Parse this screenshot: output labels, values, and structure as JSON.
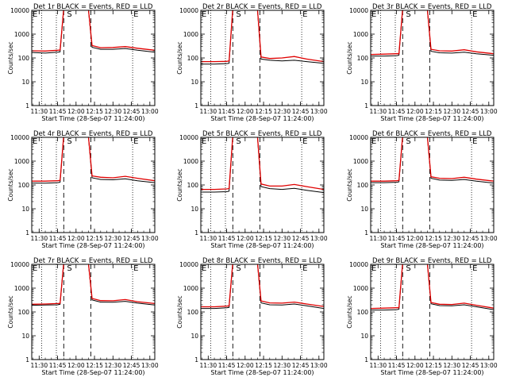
{
  "chart_data": [
    {
      "type": "line",
      "title": "Det 1r BLACK = Events, RED = LLD",
      "xlabel": "Start Time (28-Sep-07 11:24:00)",
      "ylabel": "Counts/sec",
      "x_ticks": [
        "11:30",
        "11:45",
        "12:00",
        "12:15",
        "12:30",
        "12:45",
        "13:00"
      ],
      "y_ticks": [
        "1",
        "10",
        "100",
        "1000",
        "10000"
      ],
      "y_scale": "log",
      "ylim": [
        1,
        10000
      ],
      "xlim": [
        "11:24",
        "13:04"
      ],
      "markers": [
        {
          "label": "E",
          "x": "11:24",
          "style": "dotted"
        },
        {
          "label": "S",
          "x": "11:52",
          "style": "dashed"
        },
        {
          "label": "E",
          "x": "12:46",
          "style": "dotted"
        }
      ],
      "dotted_lines": [
        "11:32",
        "11:44",
        "12:46"
      ],
      "dashed_lines": [
        "11:50",
        "12:12"
      ],
      "x": [
        "11:24",
        "11:35",
        "11:45",
        "11:47",
        "11:50",
        "11:52",
        "12:10",
        "12:13",
        "12:20",
        "12:30",
        "12:40",
        "12:50",
        "13:04"
      ],
      "series": [
        {
          "name": "Events",
          "color": "#000000",
          "values": [
            170,
            160,
            175,
            180,
            12000,
            12000,
            12000,
            280,
            230,
            230,
            250,
            210,
            175
          ]
        },
        {
          "name": "LLD",
          "color": "#e00000",
          "values": [
            200,
            195,
            210,
            215,
            12000,
            12000,
            12000,
            330,
            270,
            275,
            300,
            255,
            210
          ]
        }
      ]
    },
    {
      "type": "line",
      "title": "Det 2r BLACK = Events, RED = LLD",
      "xlabel": "Start Time (28-Sep-07 11:24:00)",
      "ylabel": "Counts/sec",
      "x_ticks": [
        "11:30",
        "11:45",
        "12:00",
        "12:15",
        "12:30",
        "12:45",
        "13:00"
      ],
      "y_ticks": [
        "1",
        "10",
        "100",
        "1000",
        "10000"
      ],
      "y_scale": "log",
      "ylim": [
        1,
        10000
      ],
      "xlim": [
        "11:24",
        "13:04"
      ],
      "markers": [
        {
          "label": "E",
          "x": "11:24",
          "style": "dotted"
        },
        {
          "label": "S",
          "x": "11:52",
          "style": "dashed"
        },
        {
          "label": "E",
          "x": "12:46",
          "style": "dotted"
        }
      ],
      "dotted_lines": [
        "11:32",
        "11:44",
        "12:46"
      ],
      "dashed_lines": [
        "11:50",
        "12:12"
      ],
      "x": [
        "11:24",
        "11:35",
        "11:45",
        "11:47",
        "11:50",
        "11:52",
        "12:10",
        "12:13",
        "12:20",
        "12:30",
        "12:40",
        "12:50",
        "13:04"
      ],
      "series": [
        {
          "name": "Events",
          "color": "#000000",
          "values": [
            55,
            55,
            58,
            60,
            12000,
            12000,
            12000,
            90,
            80,
            75,
            80,
            70,
            60
          ]
        },
        {
          "name": "LLD",
          "color": "#e00000",
          "values": [
            70,
            70,
            72,
            75,
            12000,
            12000,
            12000,
            110,
            95,
            100,
            115,
            90,
            70
          ]
        }
      ]
    },
    {
      "type": "line",
      "title": "Det 3r BLACK = Events, RED = LLD",
      "xlabel": "Start Time (28-Sep-07 11:24:00)",
      "ylabel": "Counts/sec",
      "x_ticks": [
        "11:30",
        "11:45",
        "12:00",
        "12:15",
        "12:30",
        "12:45",
        "13:00"
      ],
      "y_ticks": [
        "1",
        "10",
        "100",
        "1000",
        "10000"
      ],
      "y_scale": "log",
      "ylim": [
        1,
        10000
      ],
      "xlim": [
        "11:24",
        "13:04"
      ],
      "markers": [
        {
          "label": "E",
          "x": "11:24",
          "style": "dotted"
        },
        {
          "label": "S",
          "x": "11:52",
          "style": "dashed"
        },
        {
          "label": "E",
          "x": "12:46",
          "style": "dotted"
        }
      ],
      "dotted_lines": [
        "11:32",
        "11:44",
        "12:46"
      ],
      "dashed_lines": [
        "11:50",
        "12:12"
      ],
      "x": [
        "11:24",
        "11:35",
        "11:45",
        "11:47",
        "11:50",
        "11:52",
        "12:10",
        "12:13",
        "12:20",
        "12:30",
        "12:40",
        "12:50",
        "13:04"
      ],
      "series": [
        {
          "name": "Events",
          "color": "#000000",
          "values": [
            120,
            120,
            125,
            130,
            12000,
            12000,
            12000,
            190,
            165,
            160,
            175,
            150,
            130
          ]
        },
        {
          "name": "LLD",
          "color": "#e00000",
          "values": [
            140,
            145,
            150,
            150,
            12000,
            12000,
            12000,
            230,
            200,
            195,
            220,
            180,
            150
          ]
        }
      ]
    },
    {
      "type": "line",
      "title": "Det 4r BLACK = Events, RED = LLD",
      "xlabel": "Start Time (28-Sep-07 11:24:00)",
      "ylabel": "Counts/sec",
      "x_ticks": [
        "11:30",
        "11:45",
        "12:00",
        "12:15",
        "12:30",
        "12:45",
        "13:00"
      ],
      "y_ticks": [
        "1",
        "10",
        "100",
        "1000",
        "10000"
      ],
      "y_scale": "log",
      "ylim": [
        1,
        10000
      ],
      "xlim": [
        "11:24",
        "13:04"
      ],
      "markers": [
        {
          "label": "E",
          "x": "11:24",
          "style": "dotted"
        },
        {
          "label": "S",
          "x": "11:52",
          "style": "dashed"
        },
        {
          "label": "E",
          "x": "12:46",
          "style": "dotted"
        }
      ],
      "dotted_lines": [
        "11:32",
        "11:44",
        "12:46"
      ],
      "dashed_lines": [
        "11:50",
        "12:12"
      ],
      "x": [
        "11:24",
        "11:35",
        "11:45",
        "11:47",
        "11:50",
        "11:52",
        "12:10",
        "12:13",
        "12:20",
        "12:30",
        "12:40",
        "12:50",
        "13:04"
      ],
      "series": [
        {
          "name": "Events",
          "color": "#000000",
          "values": [
            120,
            118,
            125,
            130,
            12000,
            12000,
            12000,
            200,
            170,
            165,
            180,
            150,
            125
          ]
        },
        {
          "name": "LLD",
          "color": "#e00000",
          "values": [
            145,
            145,
            150,
            155,
            12000,
            12000,
            12000,
            240,
            210,
            200,
            230,
            190,
            150
          ]
        }
      ]
    },
    {
      "type": "line",
      "title": "Det 5r BLACK = Events, RED = LLD",
      "xlabel": "Start Time (28-Sep-07 11:24:00)",
      "ylabel": "Counts/sec",
      "x_ticks": [
        "11:30",
        "11:45",
        "12:00",
        "12:15",
        "12:30",
        "12:45",
        "13:00"
      ],
      "y_ticks": [
        "1",
        "10",
        "100",
        "1000",
        "10000"
      ],
      "y_scale": "log",
      "ylim": [
        1,
        10000
      ],
      "xlim": [
        "11:24",
        "13:04"
      ],
      "markers": [
        {
          "label": "E",
          "x": "11:24",
          "style": "dotted"
        },
        {
          "label": "S",
          "x": "11:52",
          "style": "dashed"
        },
        {
          "label": "E",
          "x": "12:46",
          "style": "dotted"
        }
      ],
      "dotted_lines": [
        "11:32",
        "11:44",
        "12:46"
      ],
      "dashed_lines": [
        "11:50",
        "12:12"
      ],
      "x": [
        "11:24",
        "11:35",
        "11:45",
        "11:47",
        "11:50",
        "11:52",
        "12:10",
        "12:13",
        "12:20",
        "12:30",
        "12:40",
        "12:50",
        "13:04"
      ],
      "series": [
        {
          "name": "Events",
          "color": "#000000",
          "values": [
            50,
            50,
            52,
            55,
            12000,
            12000,
            12000,
            85,
            70,
            65,
            72,
            60,
            48
          ]
        },
        {
          "name": "LLD",
          "color": "#e00000",
          "values": [
            65,
            65,
            68,
            70,
            12000,
            12000,
            12000,
            110,
            90,
            90,
            105,
            85,
            65
          ]
        }
      ]
    },
    {
      "type": "line",
      "title": "Det 6r BLACK = Events, RED = LLD",
      "xlabel": "Start Time (28-Sep-07 11:24:00)",
      "ylabel": "Counts/sec",
      "x_ticks": [
        "11:30",
        "11:45",
        "12:00",
        "12:15",
        "12:30",
        "12:45",
        "13:00"
      ],
      "y_ticks": [
        "1",
        "10",
        "100",
        "1000",
        "10000"
      ],
      "y_scale": "log",
      "ylim": [
        1,
        10000
      ],
      "xlim": [
        "11:24",
        "13:04"
      ],
      "markers": [
        {
          "label": "E",
          "x": "11:24",
          "style": "dotted"
        },
        {
          "label": "S",
          "x": "11:52",
          "style": "dashed"
        },
        {
          "label": "E",
          "x": "12:46",
          "style": "dotted"
        }
      ],
      "dotted_lines": [
        "11:32",
        "11:44",
        "12:46"
      ],
      "dashed_lines": [
        "11:50",
        "12:12"
      ],
      "x": [
        "11:24",
        "11:35",
        "11:45",
        "11:47",
        "11:50",
        "11:52",
        "12:10",
        "12:13",
        "12:20",
        "12:30",
        "12:40",
        "12:50",
        "13:04"
      ],
      "series": [
        {
          "name": "Events",
          "color": "#000000",
          "values": [
            125,
            125,
            130,
            135,
            12000,
            12000,
            12000,
            190,
            160,
            155,
            170,
            145,
            120
          ]
        },
        {
          "name": "LLD",
          "color": "#e00000",
          "values": [
            145,
            145,
            150,
            155,
            12000,
            12000,
            12000,
            220,
            190,
            185,
            210,
            175,
            145
          ]
        }
      ]
    },
    {
      "type": "line",
      "title": "Det 7r BLACK = Events, RED = LLD",
      "xlabel": "Start Time (28-Sep-07 11:24:00)",
      "ylabel": "Counts/sec",
      "x_ticks": [
        "11:30",
        "11:45",
        "12:00",
        "12:15",
        "12:30",
        "12:45",
        "13:00"
      ],
      "y_ticks": [
        "1",
        "10",
        "100",
        "1000",
        "10000"
      ],
      "y_scale": "log",
      "ylim": [
        1,
        10000
      ],
      "xlim": [
        "11:24",
        "13:04"
      ],
      "markers": [
        {
          "label": "E",
          "x": "11:24",
          "style": "dotted"
        },
        {
          "label": "S",
          "x": "11:52",
          "style": "dashed"
        },
        {
          "label": "E",
          "x": "12:46",
          "style": "dotted"
        }
      ],
      "dotted_lines": [
        "11:32",
        "11:44",
        "12:46"
      ],
      "dashed_lines": [
        "11:50",
        "12:12"
      ],
      "x": [
        "11:24",
        "11:35",
        "11:45",
        "11:47",
        "11:50",
        "11:52",
        "12:10",
        "12:13",
        "12:20",
        "12:30",
        "12:40",
        "12:50",
        "13:04"
      ],
      "series": [
        {
          "name": "Events",
          "color": "#000000",
          "values": [
            190,
            195,
            200,
            210,
            12000,
            12000,
            12000,
            320,
            260,
            255,
            280,
            235,
            195
          ]
        },
        {
          "name": "LLD",
          "color": "#e00000",
          "values": [
            210,
            215,
            225,
            230,
            12000,
            12000,
            12000,
            370,
            300,
            295,
            330,
            270,
            225
          ]
        }
      ]
    },
    {
      "type": "line",
      "title": "Det 8r BLACK = Events, RED = LLD",
      "xlabel": "Start Time (28-Sep-07 11:24:00)",
      "ylabel": "Counts/sec",
      "x_ticks": [
        "11:30",
        "11:45",
        "12:00",
        "12:15",
        "12:30",
        "12:45",
        "13:00"
      ],
      "y_ticks": [
        "1",
        "10",
        "100",
        "1000",
        "10000"
      ],
      "y_scale": "log",
      "ylim": [
        1,
        10000
      ],
      "xlim": [
        "11:24",
        "13:04"
      ],
      "markers": [
        {
          "label": "E",
          "x": "11:24",
          "style": "dotted"
        },
        {
          "label": "S",
          "x": "11:52",
          "style": "dashed"
        },
        {
          "label": "E",
          "x": "12:46",
          "style": "dotted"
        }
      ],
      "dotted_lines": [
        "11:32",
        "11:44",
        "12:46"
      ],
      "dashed_lines": [
        "11:50",
        "12:12"
      ],
      "x": [
        "11:24",
        "11:35",
        "11:45",
        "11:47",
        "11:50",
        "11:52",
        "12:10",
        "12:13",
        "12:20",
        "12:30",
        "12:40",
        "12:50",
        "13:04"
      ],
      "series": [
        {
          "name": "Events",
          "color": "#000000",
          "values": [
            140,
            140,
            150,
            155,
            12000,
            12000,
            12000,
            240,
            200,
            195,
            215,
            180,
            140
          ]
        },
        {
          "name": "LLD",
          "color": "#e00000",
          "values": [
            165,
            165,
            175,
            180,
            12000,
            12000,
            12000,
            290,
            240,
            235,
            260,
            215,
            170
          ]
        }
      ]
    },
    {
      "type": "line",
      "title": "Det 9r BLACK = Events, RED = LLD",
      "xlabel": "Start Time (28-Sep-07 11:24:00)",
      "ylabel": "Counts/sec",
      "x_ticks": [
        "11:30",
        "11:45",
        "12:00",
        "12:15",
        "12:30",
        "12:45",
        "13:00"
      ],
      "y_ticks": [
        "1",
        "10",
        "100",
        "1000",
        "10000"
      ],
      "y_scale": "log",
      "ylim": [
        1,
        10000
      ],
      "xlim": [
        "11:24",
        "13:04"
      ],
      "markers": [
        {
          "label": "E",
          "x": "11:24",
          "style": "dotted"
        },
        {
          "label": "S",
          "x": "11:52",
          "style": "dashed"
        },
        {
          "label": "E",
          "x": "12:46",
          "style": "dotted"
        }
      ],
      "dotted_lines": [
        "11:32",
        "11:44",
        "12:46"
      ],
      "dashed_lines": [
        "11:50",
        "12:12"
      ],
      "x": [
        "11:24",
        "11:35",
        "11:45",
        "11:47",
        "11:50",
        "11:52",
        "12:10",
        "12:13",
        "12:20",
        "12:30",
        "12:40",
        "12:50",
        "13:04"
      ],
      "series": [
        {
          "name": "Events",
          "color": "#000000",
          "values": [
            120,
            120,
            125,
            130,
            12000,
            12000,
            12000,
            220,
            185,
            180,
            200,
            165,
            125
          ]
        },
        {
          "name": "LLD",
          "color": "#e00000",
          "values": [
            140,
            145,
            150,
            150,
            12000,
            12000,
            12000,
            250,
            210,
            205,
            235,
            190,
            145
          ]
        }
      ]
    }
  ]
}
